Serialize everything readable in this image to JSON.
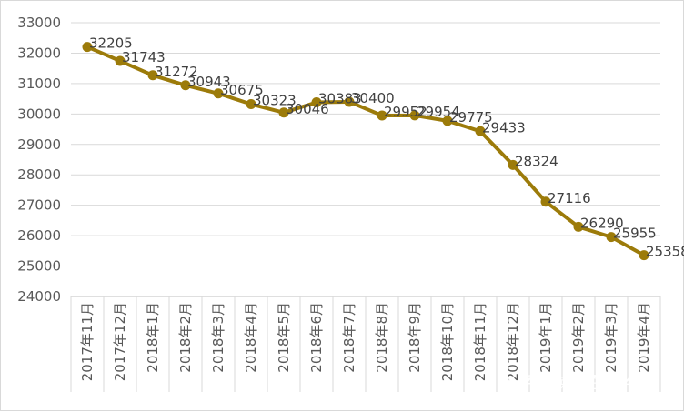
{
  "chart_data": {
    "type": "line",
    "categories": [
      "2017年11月",
      "2017年12月",
      "2018年1月",
      "2018年2月",
      "2018年3月",
      "2018年4月",
      "2018年5月",
      "2018年6月",
      "2018年7月",
      "2018年8月",
      "2018年9月",
      "2018年10月",
      "2018年11月",
      "2018年12月",
      "2019年1月",
      "2019年2月",
      "2019年3月",
      "2019年4月"
    ],
    "values": [
      32205,
      31743,
      31272,
      30943,
      30675,
      30323,
      30046,
      30383,
      30400,
      29952,
      29954,
      29775,
      29433,
      28324,
      27116,
      26290,
      25955,
      25358
    ],
    "data_labels": [
      "32205",
      "31743",
      "31272",
      "30943",
      "30675",
      "30323",
      "30046",
      "30383",
      "30400",
      "29952",
      "29954",
      "29775",
      "29433",
      "28324",
      "27116",
      "26290",
      "25955",
      "25358"
    ],
    "title": "",
    "xlabel": "",
    "ylabel": "",
    "ylim": [
      24000,
      33000
    ],
    "yticks": [
      "24000",
      "25000",
      "26000",
      "27000",
      "28000",
      "29000",
      "30000",
      "31000",
      "32000",
      "33000"
    ],
    "grid": "horizontal",
    "legend": "none",
    "colors": {
      "line": "#9c7b0a",
      "marker": "#9c7b0a",
      "grid": "#d9d9d9",
      "axis": "#bfbfbf"
    }
  },
  "watermark": "知乎 @懒散的蜗牛"
}
